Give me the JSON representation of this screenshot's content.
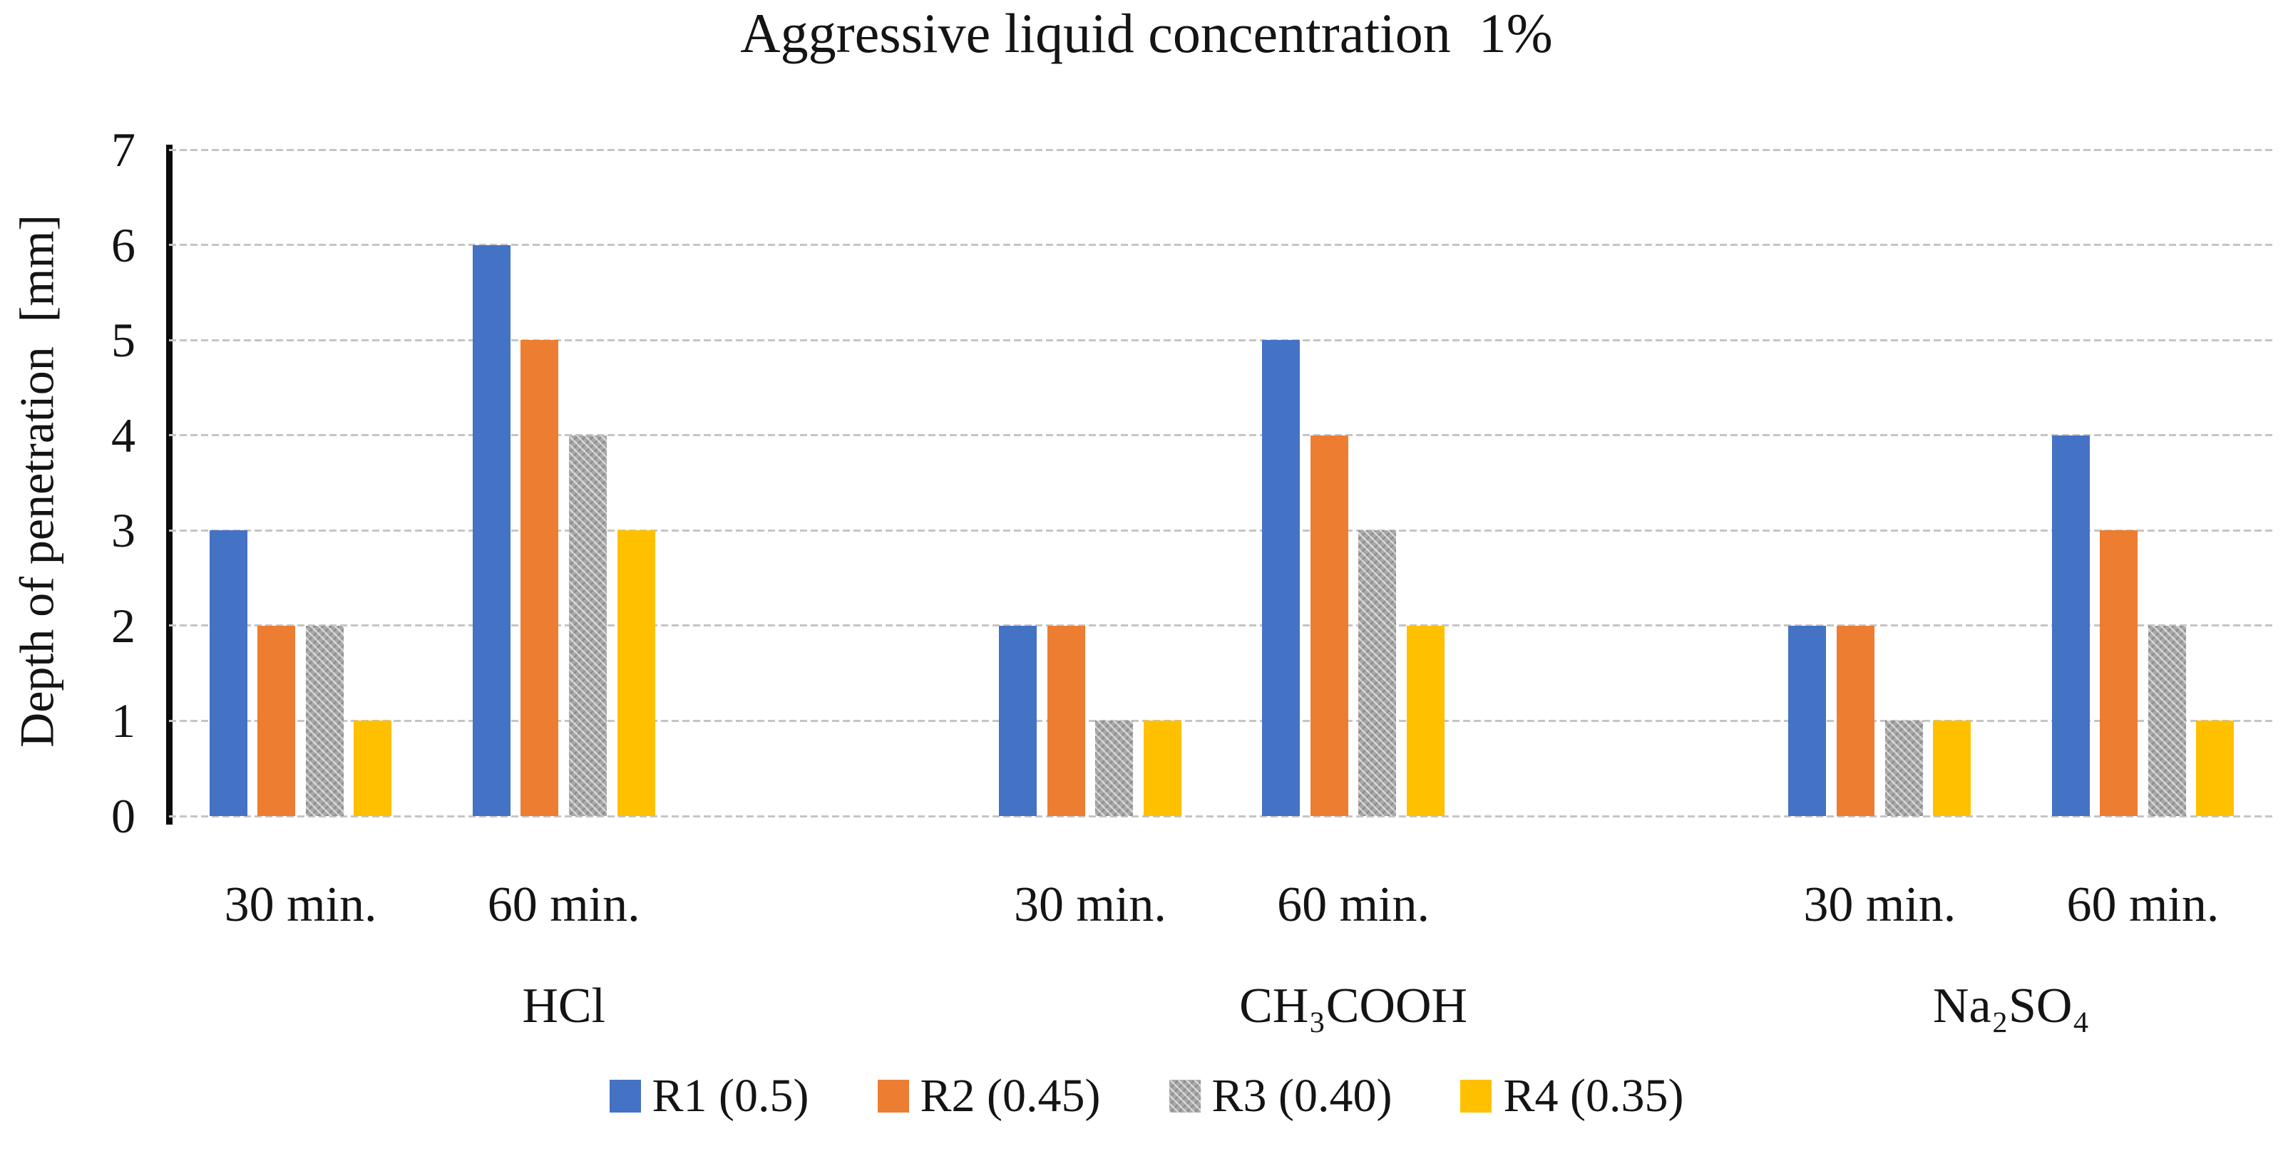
{
  "chart_data": {
    "type": "bar",
    "title": "Aggressive liquid concentration  1%",
    "ylabel": "Depth of penetration  [mm]",
    "ylim": [
      0,
      7
    ],
    "yticks": [
      0,
      1,
      2,
      3,
      4,
      5,
      6,
      7
    ],
    "grid": "horizontal-dashed",
    "legend_position": "bottom-center",
    "categories": [
      "30 min.",
      "60 min."
    ],
    "group_labels": [
      "HCl",
      "CH₃COOH",
      "Na₂SO₄"
    ],
    "series": [
      {
        "name": "R1 (0.5)",
        "color": "#4472C4",
        "pattern": "solid",
        "values": [
          3,
          6,
          2,
          5,
          2,
          4
        ]
      },
      {
        "name": "R2 (0.45)",
        "color": "#ED7D31",
        "pattern": "solid",
        "values": [
          2,
          5,
          2,
          4,
          2,
          3
        ]
      },
      {
        "name": "R3 (0.40)",
        "color": "#A8A8A8",
        "pattern": "zigzag-hatch",
        "values": [
          2,
          4,
          1,
          3,
          1,
          2
        ]
      },
      {
        "name": "R4 (0.35)",
        "color": "#FFC000",
        "pattern": "solid",
        "values": [
          1,
          3,
          1,
          2,
          1,
          1
        ]
      }
    ],
    "axis_color": "#0b0b0b",
    "gridline_color": "#c5c5c5"
  }
}
